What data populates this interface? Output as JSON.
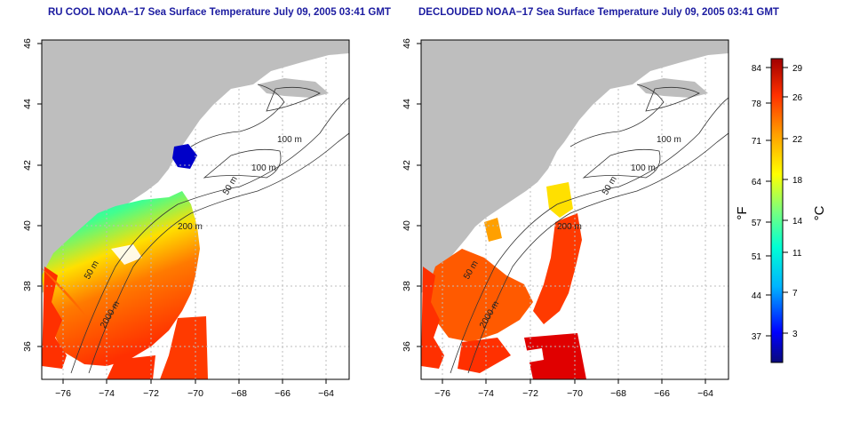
{
  "panels": [
    {
      "title": "RU COOL NOAA−17 Sea Surface Temperature July 09, 2005 03:41 GMT",
      "x_ticks": [
        "−76",
        "−74",
        "−72",
        "−70",
        "−68",
        "−66",
        "−64"
      ],
      "y_ticks": [
        "36",
        "38",
        "40",
        "42",
        "44",
        "46"
      ],
      "contour_labels": [
        "100 m",
        "100 m",
        "50 m",
        "200 m",
        "50 m",
        "2000 m"
      ]
    },
    {
      "title": "DECLOUDED NOAA−17 Sea Surface Temperature July 09, 2005 03:41 GMT",
      "x_ticks": [
        "−76",
        "−74",
        "−72",
        "−70",
        "−68",
        "−66",
        "−64"
      ],
      "y_ticks": [
        "36",
        "38",
        "40",
        "42",
        "44",
        "46"
      ],
      "contour_labels": [
        "100 m",
        "100 m",
        "50 m",
        "200 m",
        "50 m",
        "2000 m"
      ]
    }
  ],
  "colorbar": {
    "f_label": "°F",
    "c_label": "°C",
    "f_ticks": [
      "84",
      "78",
      "71",
      "64",
      "57",
      "51",
      "44",
      "37"
    ],
    "c_ticks": [
      "29",
      "26",
      "22",
      "18",
      "14",
      "11",
      "7",
      "3"
    ],
    "colors": [
      "#0a0a7a",
      "#0000ff",
      "#00b4ff",
      "#00ffd4",
      "#7cff7c",
      "#ffff00",
      "#ffa000",
      "#ff3000",
      "#a00000"
    ]
  },
  "colors": {
    "land": "#bebebe",
    "title": "#1b1ba0",
    "grid": "#bdbdbd",
    "contour": "#333333"
  }
}
